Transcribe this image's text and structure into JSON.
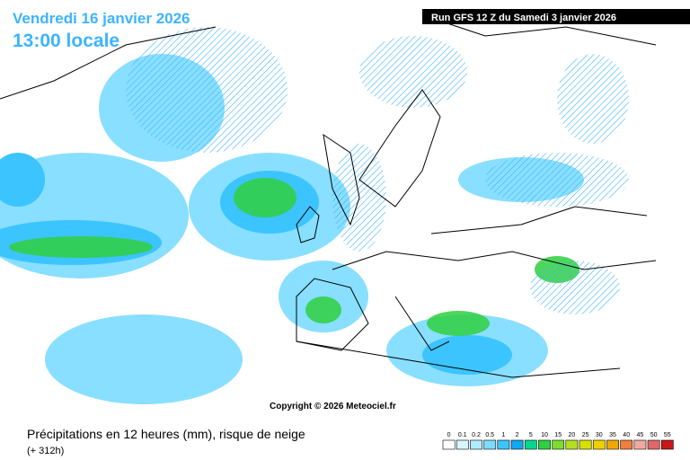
{
  "header": {
    "date": "Vendredi 16 janvier 2026",
    "time": "13:00 locale",
    "run": "Run GFS 12 Z du Samedi 3 janvier 2026"
  },
  "copyright": "Copyright © 2026 Meteociel.fr",
  "footer": {
    "title": "Précipitations en 12 heures (mm), risque de neige",
    "lead": "(+ 312h)"
  },
  "legend": {
    "items": [
      {
        "label": 0,
        "color": "#ffffff"
      },
      {
        "label": 0.1,
        "color": "#d8f6ff"
      },
      {
        "label": 0.2,
        "color": "#b0ecff"
      },
      {
        "label": 0.5,
        "color": "#7cdcff"
      },
      {
        "label": 1,
        "color": "#3cc4ff"
      },
      {
        "label": 2,
        "color": "#10a8f0"
      },
      {
        "label": 5,
        "color": "#00d890"
      },
      {
        "label": 10,
        "color": "#30d040"
      },
      {
        "label": 15,
        "color": "#7cdc30"
      },
      {
        "label": 20,
        "color": "#b4e020"
      },
      {
        "label": 25,
        "color": "#d8e000"
      },
      {
        "label": 30,
        "color": "#f0d000"
      },
      {
        "label": 35,
        "color": "#f0a800"
      },
      {
        "label": 40,
        "color": "#f08040"
      },
      {
        "label": 45,
        "color": "#f0a8a0"
      },
      {
        "label": 50,
        "color": "#e06868"
      },
      {
        "label": 55,
        "color": "#c81818"
      }
    ]
  }
}
